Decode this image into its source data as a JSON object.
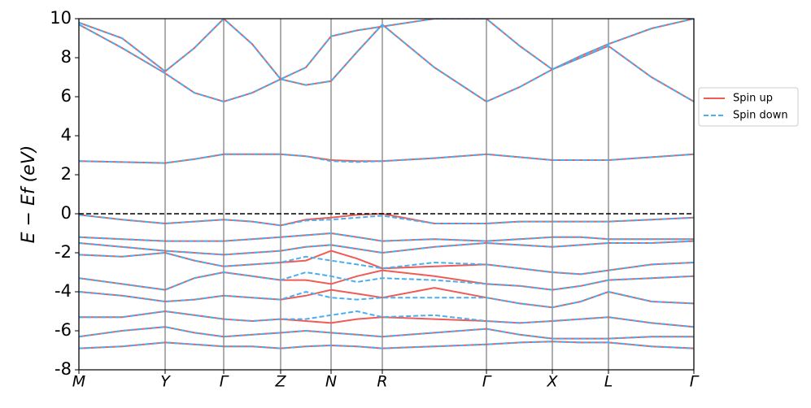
{
  "chart_data": {
    "type": "line",
    "ylabel": "E − Ef (eV)",
    "x": [
      0,
      0.53,
      1.06,
      1.42,
      1.78,
      2.13,
      2.48,
      2.79,
      3.1,
      3.42,
      3.73,
      4.37,
      5.01,
      5.42,
      5.82,
      6.17,
      6.51,
      7.04,
      7.56
    ],
    "xlim": [
      0,
      7.56
    ],
    "xticks": [
      {
        "value": 0,
        "label": "M"
      },
      {
        "value": 1.06,
        "label": "Y"
      },
      {
        "value": 1.78,
        "label": "Γ"
      },
      {
        "value": 2.48,
        "label": "Z"
      },
      {
        "value": 3.1,
        "label": "N"
      },
      {
        "value": 3.73,
        "label": "R"
      },
      {
        "value": 5.01,
        "label": "Γ"
      },
      {
        "value": 5.82,
        "label": "X"
      },
      {
        "value": 6.51,
        "label": "L"
      },
      {
        "value": 7.56,
        "label": "Γ"
      }
    ],
    "ylim": [
      -8,
      10
    ],
    "yticks": [
      -8,
      -6,
      -4,
      -2,
      0,
      2,
      4,
      6,
      8,
      10
    ],
    "xgrid": true,
    "reference_line": 0,
    "legend": "outside-right",
    "series": [
      {
        "name": "Spin up",
        "color": "#ef5b55",
        "dashed": false,
        "bands": [
          [
            -6.9,
            -6.8,
            -6.6,
            -6.7,
            -6.8,
            -6.8,
            -6.9,
            -6.8,
            -6.75,
            -6.8,
            -6.9,
            -6.8,
            -6.7,
            -6.6,
            -6.55,
            -6.6,
            -6.6,
            -6.8,
            -6.9
          ],
          [
            -6.3,
            -6.0,
            -5.8,
            -6.1,
            -6.3,
            -6.2,
            -6.1,
            -6.0,
            -6.1,
            -6.2,
            -6.3,
            -6.1,
            -5.9,
            -6.2,
            -6.4,
            -6.4,
            -6.4,
            -6.3,
            -6.3
          ],
          [
            -5.3,
            -5.3,
            -5.0,
            -5.2,
            -5.4,
            -5.5,
            -5.4,
            -5.5,
            -5.6,
            -5.4,
            -5.3,
            -5.4,
            -5.5,
            -5.6,
            -5.5,
            -5.4,
            -5.3,
            -5.6,
            -5.8
          ],
          [
            -4.0,
            -4.2,
            -4.5,
            -4.4,
            -4.2,
            -4.3,
            -4.4,
            -4.2,
            -3.9,
            -4.1,
            -4.3,
            -3.8,
            -4.3,
            -4.6,
            -4.8,
            -4.5,
            -4.0,
            -4.5,
            -4.6
          ],
          [
            -3.3,
            -3.6,
            -3.9,
            -3.3,
            -3.0,
            -3.2,
            -3.4,
            -3.4,
            -3.6,
            -3.2,
            -2.9,
            -3.2,
            -3.6,
            -3.7,
            -3.9,
            -3.7,
            -3.4,
            -3.3,
            -3.2
          ],
          [
            -2.1,
            -2.2,
            -2.0,
            -2.4,
            -2.7,
            -2.6,
            -2.5,
            -2.4,
            -1.9,
            -2.3,
            -2.8,
            -2.7,
            -2.6,
            -2.8,
            -3.0,
            -3.1,
            -2.9,
            -2.6,
            -2.5
          ],
          [
            -1.5,
            -1.7,
            -1.9,
            -2.0,
            -2.1,
            -2.0,
            -1.9,
            -1.7,
            -1.6,
            -1.8,
            -2.0,
            -1.7,
            -1.5,
            -1.6,
            -1.7,
            -1.6,
            -1.5,
            -1.5,
            -1.4
          ],
          [
            -1.2,
            -1.3,
            -1.4,
            -1.4,
            -1.4,
            -1.3,
            -1.2,
            -1.1,
            -1.0,
            -1.2,
            -1.4,
            -1.3,
            -1.4,
            -1.3,
            -1.2,
            -1.2,
            -1.3,
            -1.3,
            -1.3
          ],
          [
            -0.05,
            -0.3,
            -0.5,
            -0.4,
            -0.3,
            -0.4,
            -0.6,
            -0.3,
            -0.2,
            -0.05,
            0,
            -0.5,
            -0.5,
            -0.4,
            -0.4,
            -0.4,
            -0.4,
            -0.3,
            -0.2
          ],
          [
            2.7,
            2.65,
            2.6,
            2.8,
            3.05,
            3.05,
            3.05,
            2.95,
            2.75,
            2.7,
            2.7,
            2.85,
            3.05,
            2.9,
            2.75,
            2.75,
            2.75,
            2.9,
            3.05
          ],
          [
            9.7,
            8.5,
            7.2,
            6.2,
            5.75,
            6.2,
            6.9,
            6.6,
            6.8,
            8.3,
            9.7,
            7.5,
            5.75,
            6.5,
            7.4,
            8.0,
            8.6,
            7.0,
            5.75
          ],
          [
            9.8,
            9.0,
            7.3,
            8.5,
            10,
            8.7,
            6.9,
            7.5,
            9.1,
            9.4,
            9.6,
            10,
            10,
            8.6,
            7.4,
            8.1,
            8.7,
            9.5,
            10
          ]
        ]
      },
      {
        "name": "Spin down",
        "color": "#4aaef0",
        "dashed": true,
        "bands": [
          [
            -6.9,
            -6.8,
            -6.6,
            -6.7,
            -6.8,
            -6.8,
            -6.9,
            -6.8,
            -6.75,
            -6.8,
            -6.9,
            -6.8,
            -6.7,
            -6.6,
            -6.55,
            -6.6,
            -6.6,
            -6.8,
            -6.9
          ],
          [
            -6.3,
            -6.0,
            -5.8,
            -6.1,
            -6.3,
            -6.2,
            -6.1,
            -6.0,
            -6.1,
            -6.2,
            -6.3,
            -6.1,
            -5.9,
            -6.2,
            -6.4,
            -6.4,
            -6.4,
            -6.3,
            -6.3
          ],
          [
            -5.3,
            -5.3,
            -5.0,
            -5.2,
            -5.4,
            -5.5,
            -5.4,
            -5.4,
            -5.2,
            -5.0,
            -5.3,
            -5.2,
            -5.5,
            -5.6,
            -5.5,
            -5.4,
            -5.3,
            -5.6,
            -5.8
          ],
          [
            -4.0,
            -4.2,
            -4.5,
            -4.4,
            -4.2,
            -4.3,
            -4.4,
            -4.0,
            -4.3,
            -4.4,
            -4.3,
            -4.3,
            -4.3,
            -4.6,
            -4.8,
            -4.5,
            -4.0,
            -4.5,
            -4.6
          ],
          [
            -3.3,
            -3.6,
            -3.9,
            -3.3,
            -3.0,
            -3.2,
            -3.4,
            -3.0,
            -3.2,
            -3.5,
            -3.3,
            -3.4,
            -3.6,
            -3.7,
            -3.9,
            -3.7,
            -3.4,
            -3.3,
            -3.2
          ],
          [
            -2.1,
            -2.2,
            -2.0,
            -2.4,
            -2.7,
            -2.6,
            -2.5,
            -2.2,
            -2.4,
            -2.6,
            -2.8,
            -2.5,
            -2.6,
            -2.8,
            -3.0,
            -3.1,
            -2.9,
            -2.6,
            -2.5
          ],
          [
            -1.5,
            -1.7,
            -1.9,
            -2.0,
            -2.1,
            -2.0,
            -1.9,
            -1.7,
            -1.6,
            -1.8,
            -2.0,
            -1.7,
            -1.5,
            -1.6,
            -1.7,
            -1.6,
            -1.5,
            -1.5,
            -1.4
          ],
          [
            -1.2,
            -1.3,
            -1.4,
            -1.4,
            -1.4,
            -1.3,
            -1.2,
            -1.1,
            -1.0,
            -1.2,
            -1.4,
            -1.3,
            -1.4,
            -1.3,
            -1.2,
            -1.2,
            -1.3,
            -1.3,
            -1.3
          ],
          [
            -0.05,
            -0.3,
            -0.5,
            -0.4,
            -0.3,
            -0.4,
            -0.6,
            -0.35,
            -0.3,
            -0.2,
            -0.1,
            -0.5,
            -0.5,
            -0.4,
            -0.4,
            -0.4,
            -0.4,
            -0.3,
            -0.2
          ],
          [
            2.7,
            2.65,
            2.6,
            2.8,
            3.05,
            3.05,
            3.05,
            2.95,
            2.7,
            2.65,
            2.7,
            2.85,
            3.05,
            2.9,
            2.75,
            2.75,
            2.75,
            2.9,
            3.05
          ],
          [
            9.7,
            8.5,
            7.2,
            6.2,
            5.75,
            6.2,
            6.9,
            6.6,
            6.8,
            8.3,
            9.7,
            7.5,
            5.75,
            6.5,
            7.4,
            8.0,
            8.6,
            7.0,
            5.75
          ],
          [
            9.8,
            9.0,
            7.3,
            8.5,
            10,
            8.7,
            6.9,
            7.5,
            9.1,
            9.4,
            9.6,
            10,
            10,
            8.6,
            7.4,
            8.1,
            8.7,
            9.5,
            10
          ]
        ]
      }
    ]
  }
}
